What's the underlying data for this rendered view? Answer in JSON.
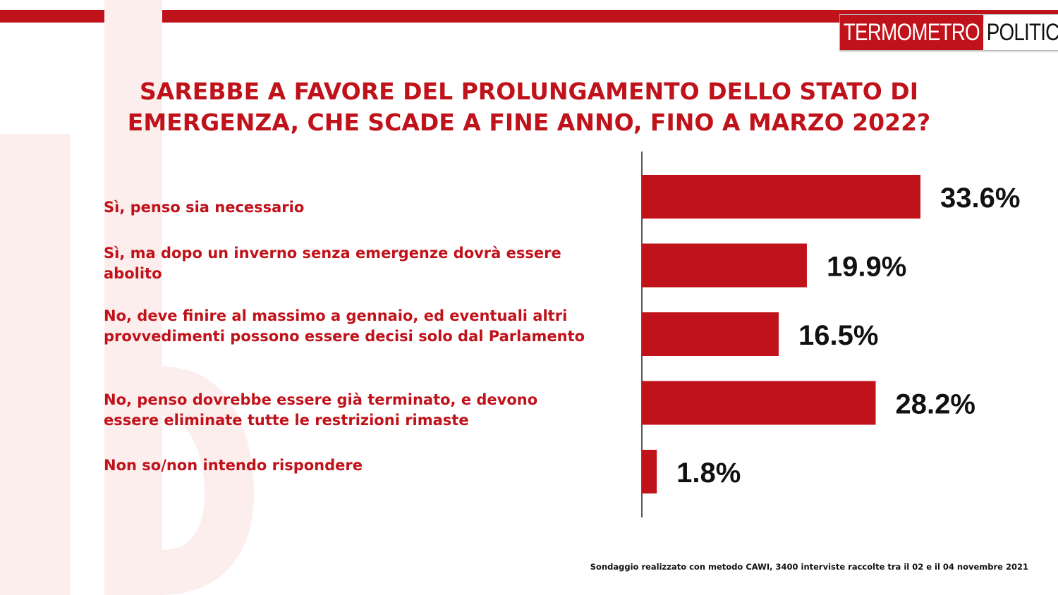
{
  "logo": {
    "part1": "TERMOMETRO",
    "part2": "POLITICO"
  },
  "title_lines": [
    "SAREBBE A FAVORE DEL PROLUNGAMENTO DELLO STATO DI",
    "EMERGENZA, CHE SCADE A FINE ANNO, FINO A MARZO 2022?"
  ],
  "footnote": "Sondaggio realizzato con metodo CAWI, 3400 interviste raccolte tra il 02 e il 04 novembre 2021",
  "colors": {
    "accent": "#c0121a",
    "label_text": "#111111"
  },
  "chart_data": {
    "type": "bar",
    "orientation": "horizontal",
    "categories": [
      "Sì, penso sia necessario",
      "Sì, ma dopo un inverno senza emergenze dovrà  essere abolito",
      "No, deve finire al massimo a gennaio, ed eventuali altri provvedimenti possono essere decisi solo dal Parlamento",
      "No, penso dovrebbe essere già  terminato, e devono essere eliminate tutte le restrizioni rimaste",
      "Non so/non intendo rispondere"
    ],
    "values": [
      33.6,
      19.9,
      16.5,
      28.2,
      1.8
    ],
    "data_labels": [
      "33.6%",
      "19.9%",
      "16.5%",
      "28.2%",
      "1.8%"
    ],
    "title": "SAREBBE A FAVORE DEL PROLUNGAMENTO DELLO STATO DI EMERGENZA, CHE SCADE A FINE ANNO, FINO A MARZO 2022?",
    "xlabel": "",
    "ylabel": "",
    "grid": false,
    "legend": "none"
  }
}
